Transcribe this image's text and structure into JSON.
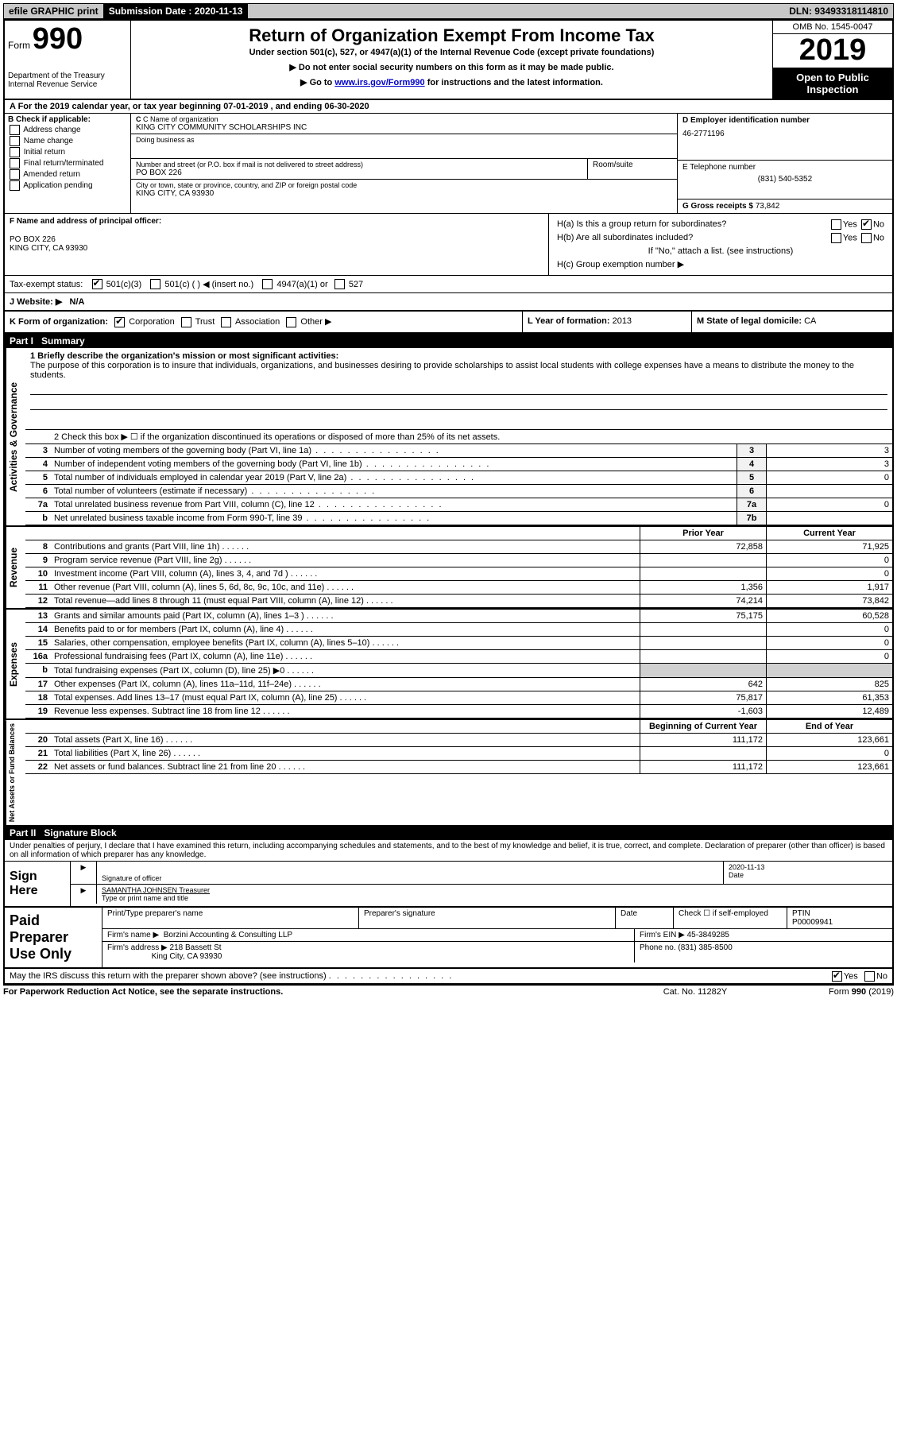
{
  "top": {
    "efile": "efile GRAPHIC print",
    "submission_label": "Submission Date : 2020-11-13",
    "dln": "DLN: 93493318114810"
  },
  "header": {
    "form_prefix": "Form",
    "form_number": "990",
    "dept1": "Department of the Treasury",
    "dept2": "Internal Revenue Service",
    "title": "Return of Organization Exempt From Income Tax",
    "subtitle": "Under section 501(c), 527, or 4947(a)(1) of the Internal Revenue Code (except private foundations)",
    "note1": "▶ Do not enter social security numbers on this form as it may be made public.",
    "note2_pre": "▶ Go to ",
    "note2_link": "www.irs.gov/Form990",
    "note2_post": " for instructions and the latest information.",
    "omb": "OMB No. 1545-0047",
    "year": "2019",
    "open": "Open to Public Inspection"
  },
  "rowA": "A For the 2019 calendar year, or tax year beginning 07-01-2019    , and ending 06-30-2020",
  "B": {
    "label": "B Check if applicable:",
    "addr": "Address change",
    "name": "Name change",
    "initial": "Initial return",
    "final": "Final return/terminated",
    "amended": "Amended return",
    "app": "Application pending"
  },
  "C": {
    "name_label": "C Name of organization",
    "name": "KING CITY COMMUNITY SCHOLARSHIPS INC",
    "dba_label": "Doing business as",
    "street_label": "Number and street (or P.O. box if mail is not delivered to street address)",
    "room_label": "Room/suite",
    "street": "PO BOX 226",
    "city_label": "City or town, state or province, country, and ZIP or foreign postal code",
    "city": "KING CITY, CA  93930"
  },
  "D": {
    "label": "D Employer identification number",
    "value": "46-2771196"
  },
  "E": {
    "label": "E Telephone number",
    "value": "(831) 540-5352"
  },
  "G": {
    "label": "G Gross receipts $",
    "value": "73,842"
  },
  "F": {
    "label": "F  Name and address of principal officer:",
    "line1": "PO BOX 226",
    "line2": "KING CITY, CA  93930"
  },
  "H": {
    "a_label": "H(a)  Is this a group return for subordinates?",
    "b_label": "H(b)  Are all subordinates included?",
    "b_note": "If \"No,\" attach a list. (see instructions)",
    "c_label": "H(c)  Group exemption number ▶",
    "yes": "Yes",
    "no": "No"
  },
  "I": {
    "label": "Tax-exempt status:",
    "opt1": "501(c)(3)",
    "opt2": "501(c) (  ) ◀ (insert no.)",
    "opt3": "4947(a)(1) or",
    "opt4": "527"
  },
  "J": {
    "label": "J  Website: ▶",
    "value": "N/A"
  },
  "K": {
    "label": "K Form of organization:",
    "corp": "Corporation",
    "trust": "Trust",
    "assoc": "Association",
    "other": "Other ▶"
  },
  "L": {
    "label": "L Year of formation:",
    "value": "2013"
  },
  "M": {
    "label": "M State of legal domicile:",
    "value": "CA"
  },
  "partI": {
    "header": "Part I",
    "title": "Summary",
    "line1_label": "1  Briefly describe the organization's mission or most significant activities:",
    "line1_text": "The purpose of this corporation is to insure that individuals, organizations, and businesses desiring to provide scholarships to assist local students with college expenses have a means to distribute the money to the students.",
    "line2": "2   Check this box ▶ ☐ if the organization discontinued its operations or disposed of more than 25% of its net assets.",
    "rows_gov": [
      {
        "n": "3",
        "label": "Number of voting members of the governing body (Part VI, line 1a)",
        "box": "3",
        "val": "3"
      },
      {
        "n": "4",
        "label": "Number of independent voting members of the governing body (Part VI, line 1b)",
        "box": "4",
        "val": "3"
      },
      {
        "n": "5",
        "label": "Total number of individuals employed in calendar year 2019 (Part V, line 2a)",
        "box": "5",
        "val": "0"
      },
      {
        "n": "6",
        "label": "Total number of volunteers (estimate if necessary)",
        "box": "6",
        "val": ""
      },
      {
        "n": "7a",
        "label": "Total unrelated business revenue from Part VIII, column (C), line 12",
        "box": "7a",
        "val": "0"
      },
      {
        "n": "b",
        "label": "Net unrelated business taxable income from Form 990-T, line 39",
        "box": "7b",
        "val": ""
      }
    ],
    "prior_year": "Prior Year",
    "current_year": "Current Year",
    "rows_rev": [
      {
        "n": "8",
        "label": "Contributions and grants (Part VIII, line 1h)",
        "py": "72,858",
        "cy": "71,925"
      },
      {
        "n": "9",
        "label": "Program service revenue (Part VIII, line 2g)",
        "py": "",
        "cy": "0"
      },
      {
        "n": "10",
        "label": "Investment income (Part VIII, column (A), lines 3, 4, and 7d )",
        "py": "",
        "cy": "0"
      },
      {
        "n": "11",
        "label": "Other revenue (Part VIII, column (A), lines 5, 6d, 8c, 9c, 10c, and 11e)",
        "py": "1,356",
        "cy": "1,917"
      },
      {
        "n": "12",
        "label": "Total revenue—add lines 8 through 11 (must equal Part VIII, column (A), line 12)",
        "py": "74,214",
        "cy": "73,842"
      }
    ],
    "rows_exp": [
      {
        "n": "13",
        "label": "Grants and similar amounts paid (Part IX, column (A), lines 1–3 )",
        "py": "75,175",
        "cy": "60,528"
      },
      {
        "n": "14",
        "label": "Benefits paid to or for members (Part IX, column (A), line 4)",
        "py": "",
        "cy": "0"
      },
      {
        "n": "15",
        "label": "Salaries, other compensation, employee benefits (Part IX, column (A), lines 5–10)",
        "py": "",
        "cy": "0"
      },
      {
        "n": "16a",
        "label": "Professional fundraising fees (Part IX, column (A), line 11e)",
        "py": "",
        "cy": "0"
      },
      {
        "n": "b",
        "label": "Total fundraising expenses (Part IX, column (D), line 25) ▶0",
        "py": "SHADE",
        "cy": "SHADE"
      },
      {
        "n": "17",
        "label": "Other expenses (Part IX, column (A), lines 11a–11d, 11f–24e)",
        "py": "642",
        "cy": "825"
      },
      {
        "n": "18",
        "label": "Total expenses. Add lines 13–17 (must equal Part IX, column (A), line 25)",
        "py": "75,817",
        "cy": "61,353"
      },
      {
        "n": "19",
        "label": "Revenue less expenses. Subtract line 18 from line 12",
        "py": "-1,603",
        "cy": "12,489"
      }
    ],
    "boy": "Beginning of Current Year",
    "eoy": "End of Year",
    "rows_net": [
      {
        "n": "20",
        "label": "Total assets (Part X, line 16)",
        "py": "111,172",
        "cy": "123,661"
      },
      {
        "n": "21",
        "label": "Total liabilities (Part X, line 26)",
        "py": "",
        "cy": "0"
      },
      {
        "n": "22",
        "label": "Net assets or fund balances. Subtract line 21 from line 20",
        "py": "111,172",
        "cy": "123,661"
      }
    ],
    "vlabels": {
      "gov": "Activities & Governance",
      "rev": "Revenue",
      "exp": "Expenses",
      "net": "Net Assets or Fund Balances"
    }
  },
  "partII": {
    "header": "Part II",
    "title": "Signature Block",
    "perjury": "Under penalties of perjury, I declare that I have examined this return, including accompanying schedules and statements, and to the best of my knowledge and belief, it is true, correct, and complete. Declaration of preparer (other than officer) is based on all information of which preparer has any knowledge.",
    "sign_here": "Sign Here",
    "sig_officer": "Signature of officer",
    "date_label": "Date",
    "date_val": "2020-11-13",
    "officer_name": "SAMANTHA JOHNSEN  Treasurer",
    "type_label": "Type or print name and title",
    "paid": "Paid Preparer Use Only",
    "pp_name_label": "Print/Type preparer's name",
    "pp_sig_label": "Preparer's signature",
    "pp_date_label": "Date",
    "pp_check_label": "Check ☐ if self-employed",
    "ptin_label": "PTIN",
    "ptin": "P00009941",
    "firm_name_label": "Firm's name     ▶",
    "firm_name": "Borzini Accounting & Consulting LLP",
    "firm_ein_label": "Firm's EIN ▶",
    "firm_ein": "45-3849285",
    "firm_addr_label": "Firm's address ▶",
    "firm_addr1": "218 Bassett St",
    "firm_addr2": "King City, CA  93930",
    "phone_label": "Phone no.",
    "phone": "(831) 385-8500",
    "discuss": "May the IRS discuss this return with the preparer shown above? (see instructions)"
  },
  "footer": {
    "pra": "For Paperwork Reduction Act Notice, see the separate instructions.",
    "cat": "Cat. No. 11282Y",
    "form": "Form 990 (2019)"
  }
}
